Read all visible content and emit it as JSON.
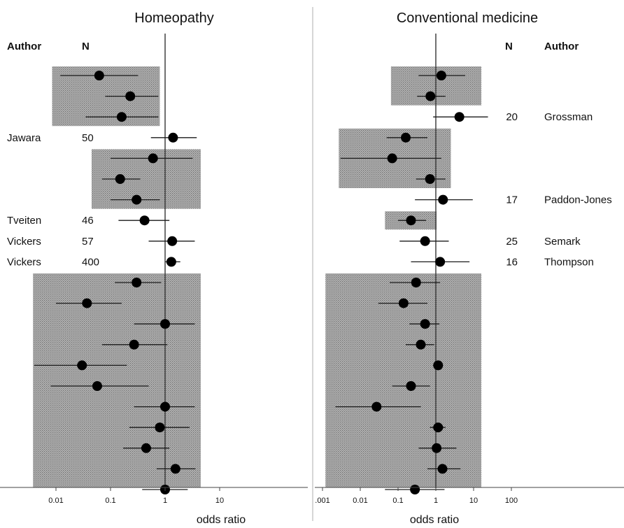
{
  "chart_data": [
    {
      "type": "scatter",
      "subtype": "forest-plot",
      "title": "Homeopathy",
      "xlabel": "odds ratio",
      "xscale": "log",
      "xlim": [
        0.001,
        100
      ],
      "xticks": [
        "0.01",
        "0.1",
        "1",
        "10"
      ],
      "reference_line": 1,
      "columns": {
        "author": "Author",
        "n": "N"
      },
      "labelled_rows": [
        {
          "author": "Jawara",
          "n": "50"
        },
        {
          "author": "Tveiten",
          "n": "46"
        },
        {
          "author": "Vickers",
          "n": "57"
        },
        {
          "author": "Vickers",
          "n": "400"
        }
      ],
      "points": [
        {
          "row": 0,
          "or": 0.062,
          "ci": [
            0.012,
            0.32
          ]
        },
        {
          "row": 1,
          "or": 0.23,
          "ci": [
            0.08,
            0.75
          ]
        },
        {
          "row": 2,
          "or": 0.16,
          "ci": [
            0.035,
            0.75
          ]
        },
        {
          "row": 3,
          "or": 1.4,
          "ci": [
            0.55,
            3.8
          ],
          "author": "Jawara",
          "n": "50"
        },
        {
          "row": 4,
          "or": 0.6,
          "ci": [
            0.1,
            3.2
          ]
        },
        {
          "row": 5,
          "or": 0.15,
          "ci": [
            0.07,
            0.35
          ]
        },
        {
          "row": 6,
          "or": 0.3,
          "ci": [
            0.1,
            0.8
          ]
        },
        {
          "row": 7,
          "or": 0.42,
          "ci": [
            0.14,
            1.2
          ],
          "author": "Tveiten",
          "n": "46"
        },
        {
          "row": 8,
          "or": 1.35,
          "ci": [
            0.5,
            3.5
          ],
          "author": "Vickers",
          "n": "57"
        },
        {
          "row": 9,
          "or": 1.3,
          "ci": [
            1.0,
            1.9
          ],
          "author": "Vickers",
          "n": "400"
        },
        {
          "row": 10,
          "or": 0.3,
          "ci": [
            0.12,
            0.85
          ]
        },
        {
          "row": 11,
          "or": 0.037,
          "ci": [
            0.01,
            0.16
          ]
        },
        {
          "row": 12,
          "or": 1.0,
          "ci": [
            0.27,
            3.5
          ]
        },
        {
          "row": 13,
          "or": 0.27,
          "ci": [
            0.07,
            1.1
          ]
        },
        {
          "row": 14,
          "or": 0.03,
          "ci": [
            0.004,
            0.2
          ]
        },
        {
          "row": 15,
          "or": 0.057,
          "ci": [
            0.008,
            0.5
          ]
        },
        {
          "row": 16,
          "or": 1.0,
          "ci": [
            0.27,
            3.5
          ]
        },
        {
          "row": 17,
          "or": 0.8,
          "ci": [
            0.22,
            2.8
          ]
        },
        {
          "row": 18,
          "or": 0.45,
          "ci": [
            0.17,
            1.2
          ]
        },
        {
          "row": 19,
          "or": 1.55,
          "ci": [
            0.7,
            3.6
          ]
        },
        {
          "row": 20,
          "or": 1.0,
          "ci": [
            0.38,
            2.6
          ]
        }
      ],
      "shaded_groups": [
        {
          "x": [
            0.0085,
            0.8
          ],
          "rows": [
            0,
            2
          ]
        },
        {
          "x": [
            0.045,
            4.5
          ],
          "rows": [
            4,
            6
          ]
        },
        {
          "x": [
            0.0038,
            4.5
          ],
          "rows": [
            10,
            20
          ]
        }
      ]
    },
    {
      "type": "scatter",
      "subtype": "forest-plot",
      "title": "Conventional medicine",
      "xlabel": "odds ratio",
      "xscale": "log",
      "xlim": [
        0.001,
        100
      ],
      "xticks": [
        ".001",
        "0.01",
        "0.1",
        "1",
        "10",
        "100"
      ],
      "reference_line": 1,
      "columns": {
        "n": "N",
        "author": "Author"
      },
      "labelled_rows": [
        {
          "n": "20",
          "author": "Grossman"
        },
        {
          "n": "17",
          "author": "Paddon-Jones"
        },
        {
          "n": "25",
          "author": "Semark"
        },
        {
          "n": "16",
          "author": "Thompson"
        }
      ],
      "points": [
        {
          "row": 0,
          "or": 1.4,
          "ci": [
            0.35,
            6
          ]
        },
        {
          "row": 1,
          "or": 0.72,
          "ci": [
            0.32,
            1.8
          ]
        },
        {
          "row": 2,
          "or": 4.2,
          "ci": [
            0.85,
            24
          ],
          "author": "Grossman",
          "n": "20"
        },
        {
          "row": 3,
          "or": 0.16,
          "ci": [
            0.05,
            0.6
          ]
        },
        {
          "row": 4,
          "or": 0.07,
          "ci": [
            0.003,
            1.4
          ]
        },
        {
          "row": 5,
          "or": 0.7,
          "ci": [
            0.3,
            1.8
          ]
        },
        {
          "row": 6,
          "or": 1.55,
          "ci": [
            0.28,
            9.5
          ],
          "author": "Paddon-Jones",
          "n": "17"
        },
        {
          "row": 7,
          "or": 0.22,
          "ci": [
            0.1,
            0.55
          ]
        },
        {
          "row": 8,
          "or": 0.52,
          "ci": [
            0.11,
            2.2
          ],
          "author": "Semark",
          "n": "25"
        },
        {
          "row": 9,
          "or": 1.3,
          "ci": [
            0.22,
            7.8
          ],
          "author": "Thompson",
          "n": "16"
        },
        {
          "row": 10,
          "or": 0.3,
          "ci": [
            0.06,
            1.3
          ]
        },
        {
          "row": 11,
          "or": 0.14,
          "ci": [
            0.03,
            0.6
          ]
        },
        {
          "row": 12,
          "or": 0.52,
          "ci": [
            0.2,
            1.25
          ]
        },
        {
          "row": 13,
          "or": 0.4,
          "ci": [
            0.16,
            0.9
          ]
        },
        {
          "row": 14,
          "or": 1.15,
          "ci": [
            0.85,
            1.55
          ]
        },
        {
          "row": 15,
          "or": 0.22,
          "ci": [
            0.07,
            0.7
          ]
        },
        {
          "row": 16,
          "or": 0.027,
          "ci": [
            0.0022,
            0.4
          ]
        },
        {
          "row": 17,
          "or": 1.15,
          "ci": [
            0.7,
            1.8
          ]
        },
        {
          "row": 18,
          "or": 1.05,
          "ci": [
            0.35,
            3.5
          ]
        },
        {
          "row": 19,
          "or": 1.5,
          "ci": [
            0.6,
            4.5
          ]
        },
        {
          "row": 20,
          "or": 0.28,
          "ci": [
            0.045,
            1.7
          ]
        }
      ],
      "shaded_groups": [
        {
          "x": [
            0.065,
            16
          ],
          "rows": [
            0,
            1
          ]
        },
        {
          "x": [
            0.0027,
            2.5
          ],
          "rows": [
            3,
            5
          ]
        },
        {
          "x": [
            0.045,
            1.05
          ],
          "rows": [
            7,
            7
          ]
        },
        {
          "x": [
            0.0012,
            16
          ],
          "rows": [
            10,
            20
          ]
        }
      ]
    }
  ]
}
